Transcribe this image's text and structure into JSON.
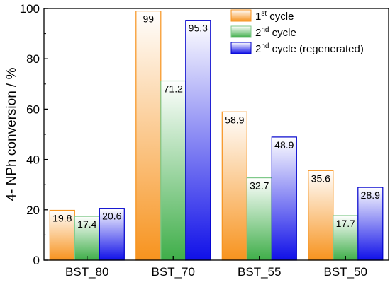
{
  "chart_data": {
    "type": "bar",
    "categories": [
      "BST_80",
      "BST_70",
      "BST_55",
      "BST_50"
    ],
    "ylabel": "4- NPh conversion / %",
    "xlabel": "",
    "ylim": [
      0,
      100
    ],
    "yticks": [
      0,
      20,
      40,
      60,
      80,
      100
    ],
    "grid": false,
    "legend_position": "top-right",
    "series": [
      {
        "name": "1st cycle",
        "name_base": "1",
        "name_sup": "st",
        "name_rest": " cycle",
        "values": [
          19.8,
          99,
          58.9,
          35.6
        ],
        "labels": [
          "19.8",
          "99",
          "58.9",
          "35.6"
        ],
        "color": "#F7931E",
        "edge": "#F7931E"
      },
      {
        "name": "2nd cycle",
        "name_base": "2",
        "name_sup": "nd",
        "name_rest": " cycle",
        "values": [
          17.4,
          71.2,
          32.7,
          17.7
        ],
        "labels": [
          "17.4",
          "71.2",
          "32.7",
          "17.7"
        ],
        "color": "#3FAE49",
        "edge": "#7FC98A"
      },
      {
        "name": "2nd cycle (regenerated)",
        "name_base": "2",
        "name_sup": "nd",
        "name_rest": " cycle (regenerated)",
        "values": [
          20.6,
          95.3,
          48.9,
          28.9
        ],
        "labels": [
          "20.6",
          "95.3",
          "48.9",
          "28.9"
        ],
        "color": "#1010E8",
        "edge": "#0000CC"
      }
    ]
  }
}
